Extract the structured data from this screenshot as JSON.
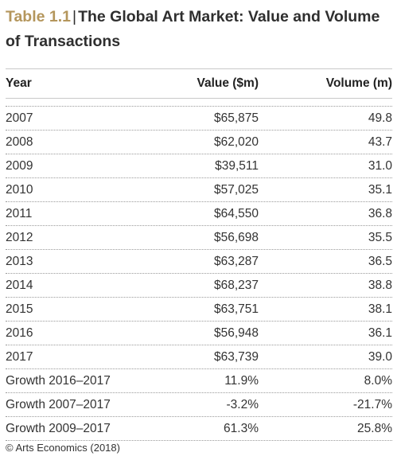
{
  "title": {
    "number": "Table 1.1",
    "separator": "|",
    "text": "The Global Art Market: Value and Volume of Transactions"
  },
  "columns": [
    "Year",
    "Value ($m)",
    "Volume (m)"
  ],
  "rows": [
    {
      "year": "2007",
      "value": "$65,875",
      "volume": "49.8"
    },
    {
      "year": "2008",
      "value": "$62,020",
      "volume": "43.7"
    },
    {
      "year": "2009",
      "value": "$39,511",
      "volume": "31.0"
    },
    {
      "year": "2010",
      "value": "$57,025",
      "volume": "35.1"
    },
    {
      "year": "2011",
      "value": "$64,550",
      "volume": "36.8"
    },
    {
      "year": "2012",
      "value": "$56,698",
      "volume": "35.5"
    },
    {
      "year": "2013",
      "value": "$63,287",
      "volume": "36.5"
    },
    {
      "year": "2014",
      "value": "$68,237",
      "volume": "38.8"
    },
    {
      "year": "2015",
      "value": "$63,751",
      "volume": "38.1"
    },
    {
      "year": "2016",
      "value": "$56,948",
      "volume": "36.1"
    },
    {
      "year": "2017",
      "value": "$63,739",
      "volume": "39.0"
    },
    {
      "year": "Growth 2016–2017",
      "value": "11.9%",
      "volume": "8.0%"
    },
    {
      "year": "Growth 2007–2017",
      "value": "-3.2%",
      "volume": "-21.7%"
    },
    {
      "year": "Growth 2009–2017",
      "value": "61.3%",
      "volume": "25.8%"
    }
  ],
  "footer": "© Arts Economics (2018)",
  "colors": {
    "accent": "#b4965c",
    "text": "#2f2f2f",
    "rule": "#c9c9c9"
  }
}
